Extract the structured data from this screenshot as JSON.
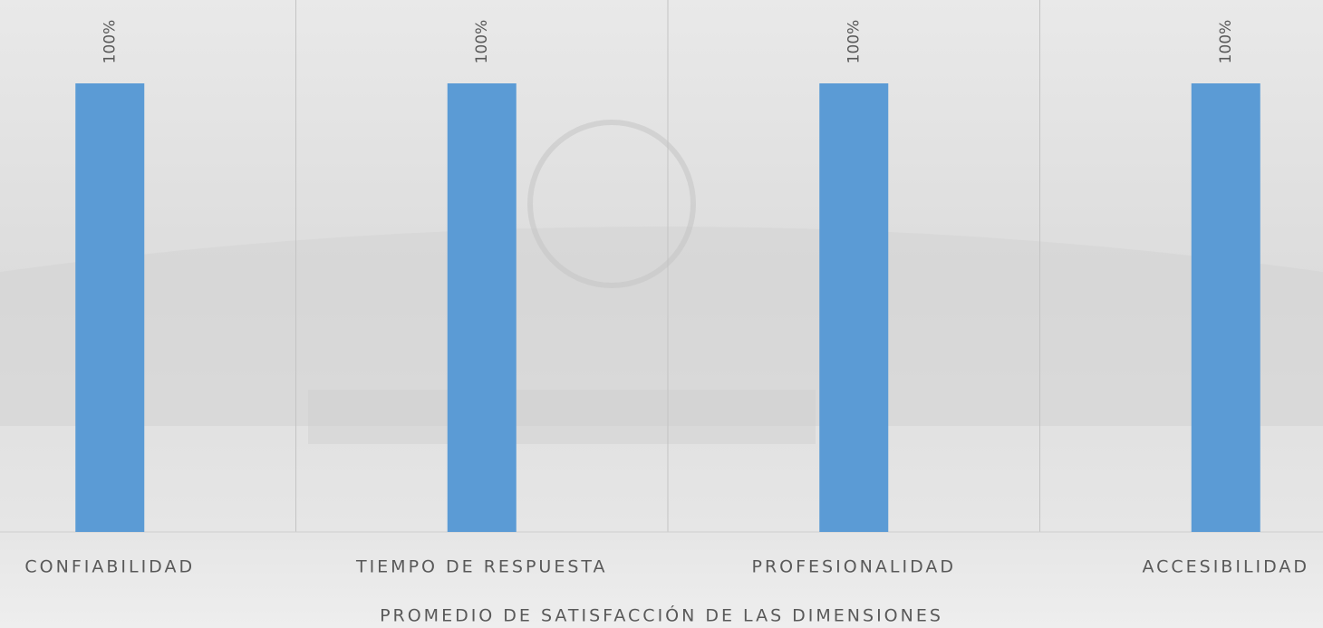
{
  "chart_data": {
    "type": "bar",
    "title": "PROMEDIO DE SATISFACCIÓN DE LAS DIMENSIONES",
    "categories": [
      "CONFIABILIDAD",
      "TIEMPO DE RESPUESTA",
      "PROFESIONALIDAD",
      "ACCESIBILIDAD"
    ],
    "values": [
      100,
      100,
      100,
      100
    ],
    "value_labels": [
      "100%",
      "100%",
      "100%",
      "100%"
    ],
    "color": "#5b9bd5",
    "ylim": [
      0,
      100
    ]
  }
}
